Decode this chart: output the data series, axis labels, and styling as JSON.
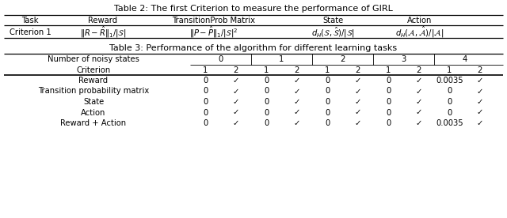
{
  "table2_title": "Table 2: The first Criterion to measure the performance of GIRL",
  "table2_headers": [
    "Task",
    "Reward",
    "TransitionProb Matrix",
    "State",
    "Action"
  ],
  "table2_row_label": "Criterion 1",
  "table2_row_data": [
    "$\\|R - \\hat{R}\\|_1/|\\mathcal{S}|$",
    "$\\|P - \\hat{P}\\|_1/|\\mathcal{S}|^2$",
    "$d_H(\\mathcal{S}, \\hat{\\mathcal{S}})/|\\mathcal{S}|$",
    "$d_H(\\mathcal{A}, \\hat{\\mathcal{A}})/|\\mathcal{A}|$"
  ],
  "table3_title": "Table 3: Performance of the algorithm for different learning tasks",
  "noisy_vals": [
    "0",
    "1",
    "2",
    "3",
    "4"
  ],
  "criterion_vals": [
    "1",
    "2",
    "1",
    "2",
    "1",
    "2",
    "1",
    "2",
    "1",
    "2"
  ],
  "table3_rows": [
    [
      "Reward",
      "0",
      "✓",
      "0",
      "✓",
      "0",
      "✓",
      "0",
      "✓",
      "0.0035",
      "✓"
    ],
    [
      "Transition probability matrix",
      "0",
      "✓",
      "0",
      "✓",
      "0",
      "✓",
      "0",
      "✓",
      "0",
      "✓"
    ],
    [
      "State",
      "0",
      "✓",
      "0",
      "✓",
      "0",
      "✓",
      "0",
      "✓",
      "0",
      "✓"
    ],
    [
      "Action",
      "0",
      "✓",
      "0",
      "✓",
      "0",
      "✓",
      "0",
      "✓",
      "0",
      "✓"
    ],
    [
      "Reward + Action",
      "0",
      "✓",
      "0",
      "✓",
      "0",
      "✓",
      "0",
      "✓",
      "0.0035",
      "✓"
    ]
  ],
  "fs": 7.2,
  "title_fs": 8.0
}
